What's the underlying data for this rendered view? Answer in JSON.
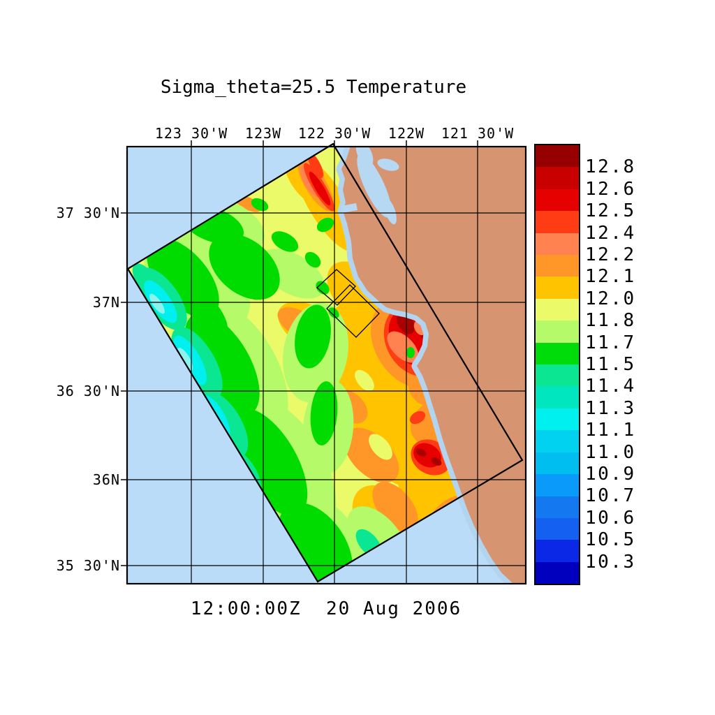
{
  "title": "Sigma_theta=25.5 Temperature",
  "timestamp": "12:00:00Z  20 Aug 2006",
  "axes": {
    "longitude_labels": [
      "123 30'W",
      "123W",
      "122 30'W",
      "122W",
      "121 30'W"
    ],
    "latitude_labels": [
      "37 30'N",
      "37N",
      "36 30'N",
      "36N",
      "35 30'N"
    ]
  },
  "colorbar": {
    "tick_labels": [
      "12.8",
      "12.6",
      "12.5",
      "12.4",
      "12.2",
      "12.1",
      "12.0",
      "11.8",
      "11.7",
      "11.5",
      "11.4",
      "11.3",
      "11.1",
      "11.0",
      "10.9",
      "10.7",
      "10.6",
      "10.5",
      "10.3"
    ],
    "colors_top_to_bottom": [
      "#960000",
      "#C80000",
      "#E60000",
      "#FF3C14",
      "#FF8250",
      "#FF9628",
      "#FFC300",
      "#EBFA69",
      "#B4FA69",
      "#00DC0A",
      "#0AE691",
      "#00E6BE",
      "#00F0F0",
      "#00D2F0",
      "#00BEF0",
      "#0A9BFA",
      "#1478F0",
      "#1460F0",
      "#0A28E6",
      "#0000BE"
    ]
  },
  "map_colors": {
    "ocean": "#BADCF8",
    "coastal_shallow": "#B2D4EE",
    "land": "#D79470"
  },
  "chart_data": {
    "type": "heatmap",
    "title": "Sigma_theta=25.5 Temperature",
    "timestamp": "12:00:00Z  20 Aug 2006",
    "x_tick_labels": [
      "123 30'W",
      "123W",
      "122 30'W",
      "122W",
      "121 30'W"
    ],
    "y_tick_labels": [
      "37 30'N",
      "37N",
      "36 30'N",
      "36N",
      "35 30'N"
    ],
    "grid": "on",
    "legend_position": "right colorbar",
    "colorbar_tick_values": [
      12.8,
      12.6,
      12.5,
      12.4,
      12.2,
      12.1,
      12.0,
      11.8,
      11.7,
      11.5,
      11.4,
      11.3,
      11.1,
      11.0,
      10.9,
      10.7,
      10.6,
      10.5,
      10.3
    ],
    "value_range": [
      10.3,
      12.8
    ],
    "n_color_levels": 20,
    "field_description": "Temperature field on the sigma_theta=25.5 surface shown inside a rotated rectangular model swath over the coastal ocean; warm (orange/red) water offshore and near the coast, a red eddy with dark-red cores near the central bay, cold (green/cyan) band along the southwest edge; land shown tan with light-blue bays; two small rotated nested grid boxes near the coast at ~37N, 122 30'W"
  }
}
